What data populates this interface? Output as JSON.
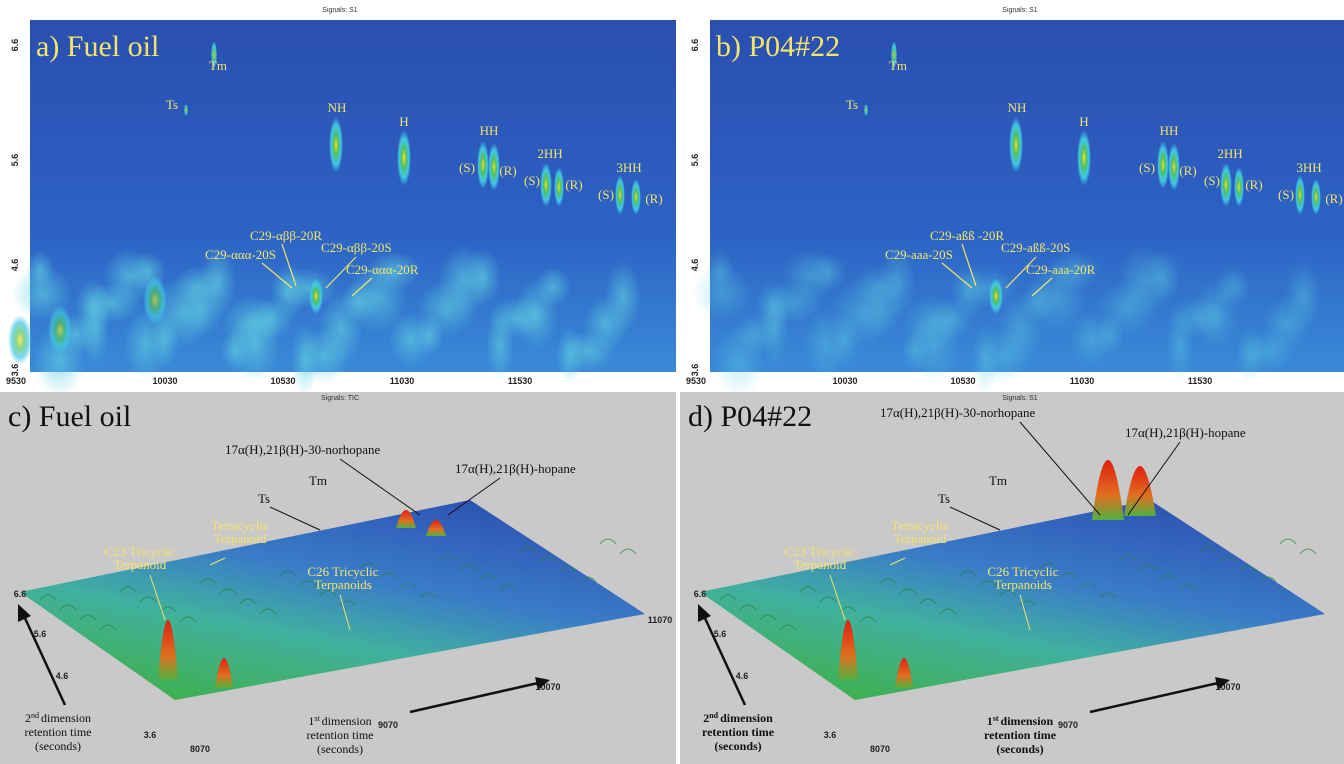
{
  "panels": [
    {
      "label": "a) Fuel oil",
      "signal": "Signals: S1",
      "x_ticks": [
        "9530",
        "10030",
        "10530",
        "11030",
        "11530"
      ],
      "y_ticks": [
        "6.6",
        "5.6",
        "4.6",
        "3.6"
      ],
      "peaks": [
        "Tm",
        "Ts",
        "NH",
        "H",
        "HH",
        "(S)",
        "(R)",
        "2HH",
        "(S)",
        "(R)",
        "3HH",
        "(S)",
        "(R)"
      ],
      "steranes": [
        "C29-αββ-20R",
        "C29-ααα-20S",
        "C29-αββ-20S",
        "C29-ααα-20R"
      ]
    },
    {
      "label": "b) P04#22",
      "signal": "Signals: S1",
      "x_ticks": [
        "9530",
        "10030",
        "10530",
        "11030",
        "11530"
      ],
      "y_ticks": [
        "6.6",
        "5.6",
        "4.6",
        "3.6"
      ],
      "peaks": [
        "Tm",
        "Ts",
        "NH",
        "H",
        "HH",
        "(S)",
        "(R)",
        "2HH",
        "(S)",
        "(R)",
        "3HH",
        "(S)",
        "(R)"
      ],
      "steranes": [
        "C29-aßß -20R",
        "C29-aaa-20S",
        "C29-aßß-20S",
        "C29-aaa-20R"
      ]
    },
    {
      "label": "c) Fuel oil",
      "signal": "Signals: TIC",
      "norhopane": "17α(H),21β(H)-30-norhopane",
      "hopane": "17α(H),21β(H)-hopane",
      "ts": "Ts",
      "tm": "Tm",
      "tetracyclic": [
        "Tetracyclic",
        "Terpanoid"
      ],
      "c23": [
        "C23 Tricyclic",
        "Terpanoid"
      ],
      "c26": [
        "C26 Tricyclic",
        "Terpanoids"
      ],
      "y_ticks": [
        "6.6",
        "5.6",
        "4.6",
        "3.6"
      ],
      "x_ticks": [
        "8070",
        "9070",
        "10070",
        "11070"
      ],
      "y_title": {
        "num": "2",
        "sup": "nd",
        "lines": [
          "dimension",
          "retention time",
          "(seconds)"
        ]
      },
      "x_title": {
        "num": "1",
        "sup": "st",
        "lines": [
          "dimension",
          "retention time",
          "(seconds)"
        ]
      }
    },
    {
      "label": "d) P04#22",
      "signal": "Signals: S1",
      "norhopane": "17α(H),21β(H)-30-norhopane",
      "hopane": "17α(H),21β(H)-hopane",
      "ts": "Ts",
      "tm": "Tm",
      "tetracyclic": [
        "Tetracyclic",
        "Terpanoid"
      ],
      "c23": [
        "C23 Tricyclic",
        "Terpanoid"
      ],
      "c26": [
        "C26 Tricyclic",
        "Terpanoids"
      ],
      "y_ticks": [
        "6.6",
        "5.6",
        "4.6",
        "3.6"
      ],
      "x_ticks": [
        "8070",
        "9070",
        "10070"
      ],
      "y_title": {
        "num": "2",
        "sup": "nd",
        "lines": [
          "dimension",
          "retention time",
          "(seconds)"
        ]
      },
      "x_title": {
        "num": "1",
        "sup": "st",
        "lines": [
          "dimension",
          "retention time",
          "(seconds)"
        ]
      }
    }
  ]
}
